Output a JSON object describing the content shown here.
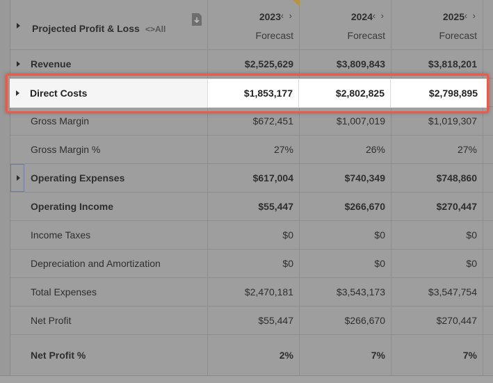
{
  "header": {
    "title": "Projected Profit & Loss",
    "all_label": "<>All",
    "download_icon": "download-file-icon",
    "columns": [
      {
        "year": "2023",
        "arrows": "‹ ›",
        "sub": "Forecast"
      },
      {
        "year": "2024",
        "arrows": "‹ ›",
        "sub": "Forecast"
      },
      {
        "year": "2025",
        "arrows": "‹ ›",
        "sub": "Forecast"
      }
    ]
  },
  "rows": [
    {
      "label": "Revenue",
      "values": [
        "$2,525,629",
        "$3,809,843",
        "$3,818,201"
      ],
      "bold": true,
      "expandable": true
    },
    {
      "label": "Direct Costs",
      "values": [
        "$1,853,177",
        "$2,802,825",
        "$2,798,895"
      ],
      "bold": true,
      "expandable": true,
      "highlighted": true
    },
    {
      "label": "Gross Margin",
      "values": [
        "$672,451",
        "$1,007,019",
        "$1,019,307"
      ],
      "bold": false
    },
    {
      "label": "Gross Margin %",
      "values": [
        "27%",
        "26%",
        "27%"
      ],
      "bold": false
    },
    {
      "label": "Operating Expenses",
      "values": [
        "$617,004",
        "$740,349",
        "$748,860"
      ],
      "bold": true,
      "expandable": true
    },
    {
      "label": "Operating Income",
      "values": [
        "$55,447",
        "$266,670",
        "$270,447"
      ],
      "bold": true
    },
    {
      "label": "Income Taxes",
      "values": [
        "$0",
        "$0",
        "$0"
      ],
      "bold": false
    },
    {
      "label": "Depreciation and Amortization",
      "values": [
        "$0",
        "$0",
        "$0"
      ],
      "bold": false
    },
    {
      "label": "Total Expenses",
      "values": [
        "$2,470,181",
        "$3,543,173",
        "$3,547,754"
      ],
      "bold": false
    },
    {
      "label": "Net Profit",
      "values": [
        "$55,447",
        "$266,670",
        "$270,447"
      ],
      "bold": false
    },
    {
      "label": "Net Profit %",
      "values": [
        "2%",
        "7%",
        "7%"
      ],
      "bold": true
    }
  ],
  "colors": {
    "highlight_border": "#ee5a48",
    "overlay_background": "#999999",
    "accent_flag": "#b89440"
  }
}
